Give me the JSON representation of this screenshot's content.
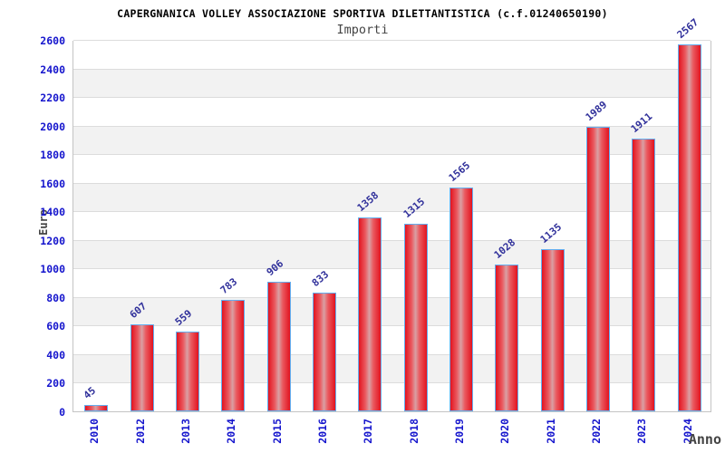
{
  "chart_data": {
    "type": "bar",
    "title": "CAPERGNANICA VOLLEY ASSOCIAZIONE SPORTIVA DILETTANTISTICA (c.f.01240650190)",
    "subtitle": "Importi",
    "xlabel": "Anno",
    "ylabel": "Euro",
    "categories": [
      "2010",
      "2012",
      "2013",
      "2014",
      "2015",
      "2016",
      "2017",
      "2018",
      "2019",
      "2020",
      "2021",
      "2022",
      "2023",
      "2024"
    ],
    "values": [
      45,
      607,
      559,
      783,
      906,
      833,
      1358,
      1315,
      1565,
      1028,
      1135,
      1989,
      1911,
      2567
    ],
    "ylim": [
      0,
      2600
    ],
    "ytick_step": 200,
    "grid": true,
    "legend": false,
    "band_fill_alternating": true,
    "colors": {
      "bar_red": "#e2131f",
      "bar_mid_light": "#d9a0a4",
      "bar_border": "#63aef0",
      "value_label": "#31319b",
      "tick_label": "#1515cd",
      "axis_label": "#444444",
      "band_gray": "#f2f2f2",
      "band_white": "#ffffff",
      "grid_line": "#dcdcdc",
      "plot_border": "#c4c4c4",
      "title": "#000000",
      "subtitle": "#444444"
    }
  }
}
